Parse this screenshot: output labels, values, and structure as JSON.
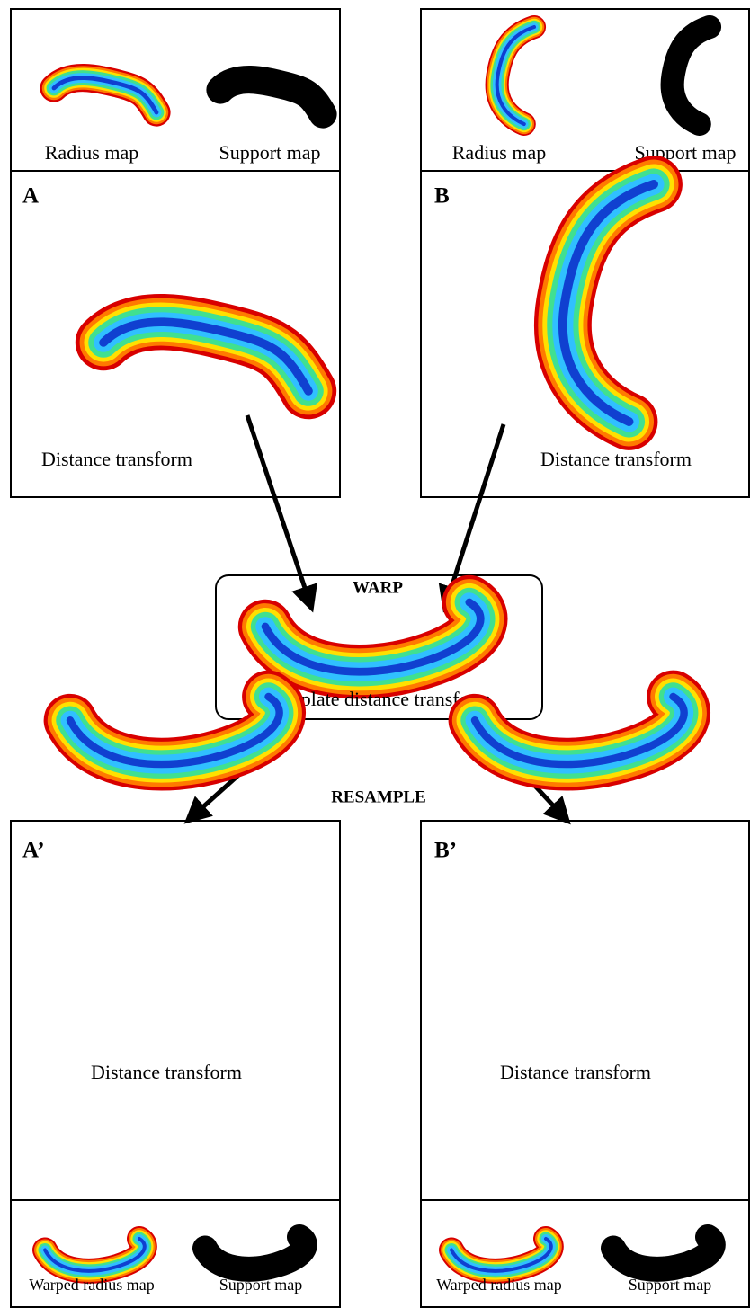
{
  "panels": [
    {
      "label": "A",
      "radius_label": "Radius map",
      "support_label": "Support map",
      "caption": "Distance transform"
    },
    {
      "label": "B",
      "radius_label": "Radius map",
      "support_label": "Support map",
      "caption": "Distance transform"
    }
  ],
  "warp": "WARP",
  "template": {
    "caption": "Template distance transform"
  },
  "resample": "RESAMPLE",
  "results": [
    {
      "label": "A’",
      "caption": "Distance transform",
      "radius_label": "Warped radius map",
      "support_label": "Support map"
    },
    {
      "label": "B’",
      "caption": "Distance transform",
      "radius_label": "Warped radius map",
      "support_label": "Support map"
    }
  ]
}
